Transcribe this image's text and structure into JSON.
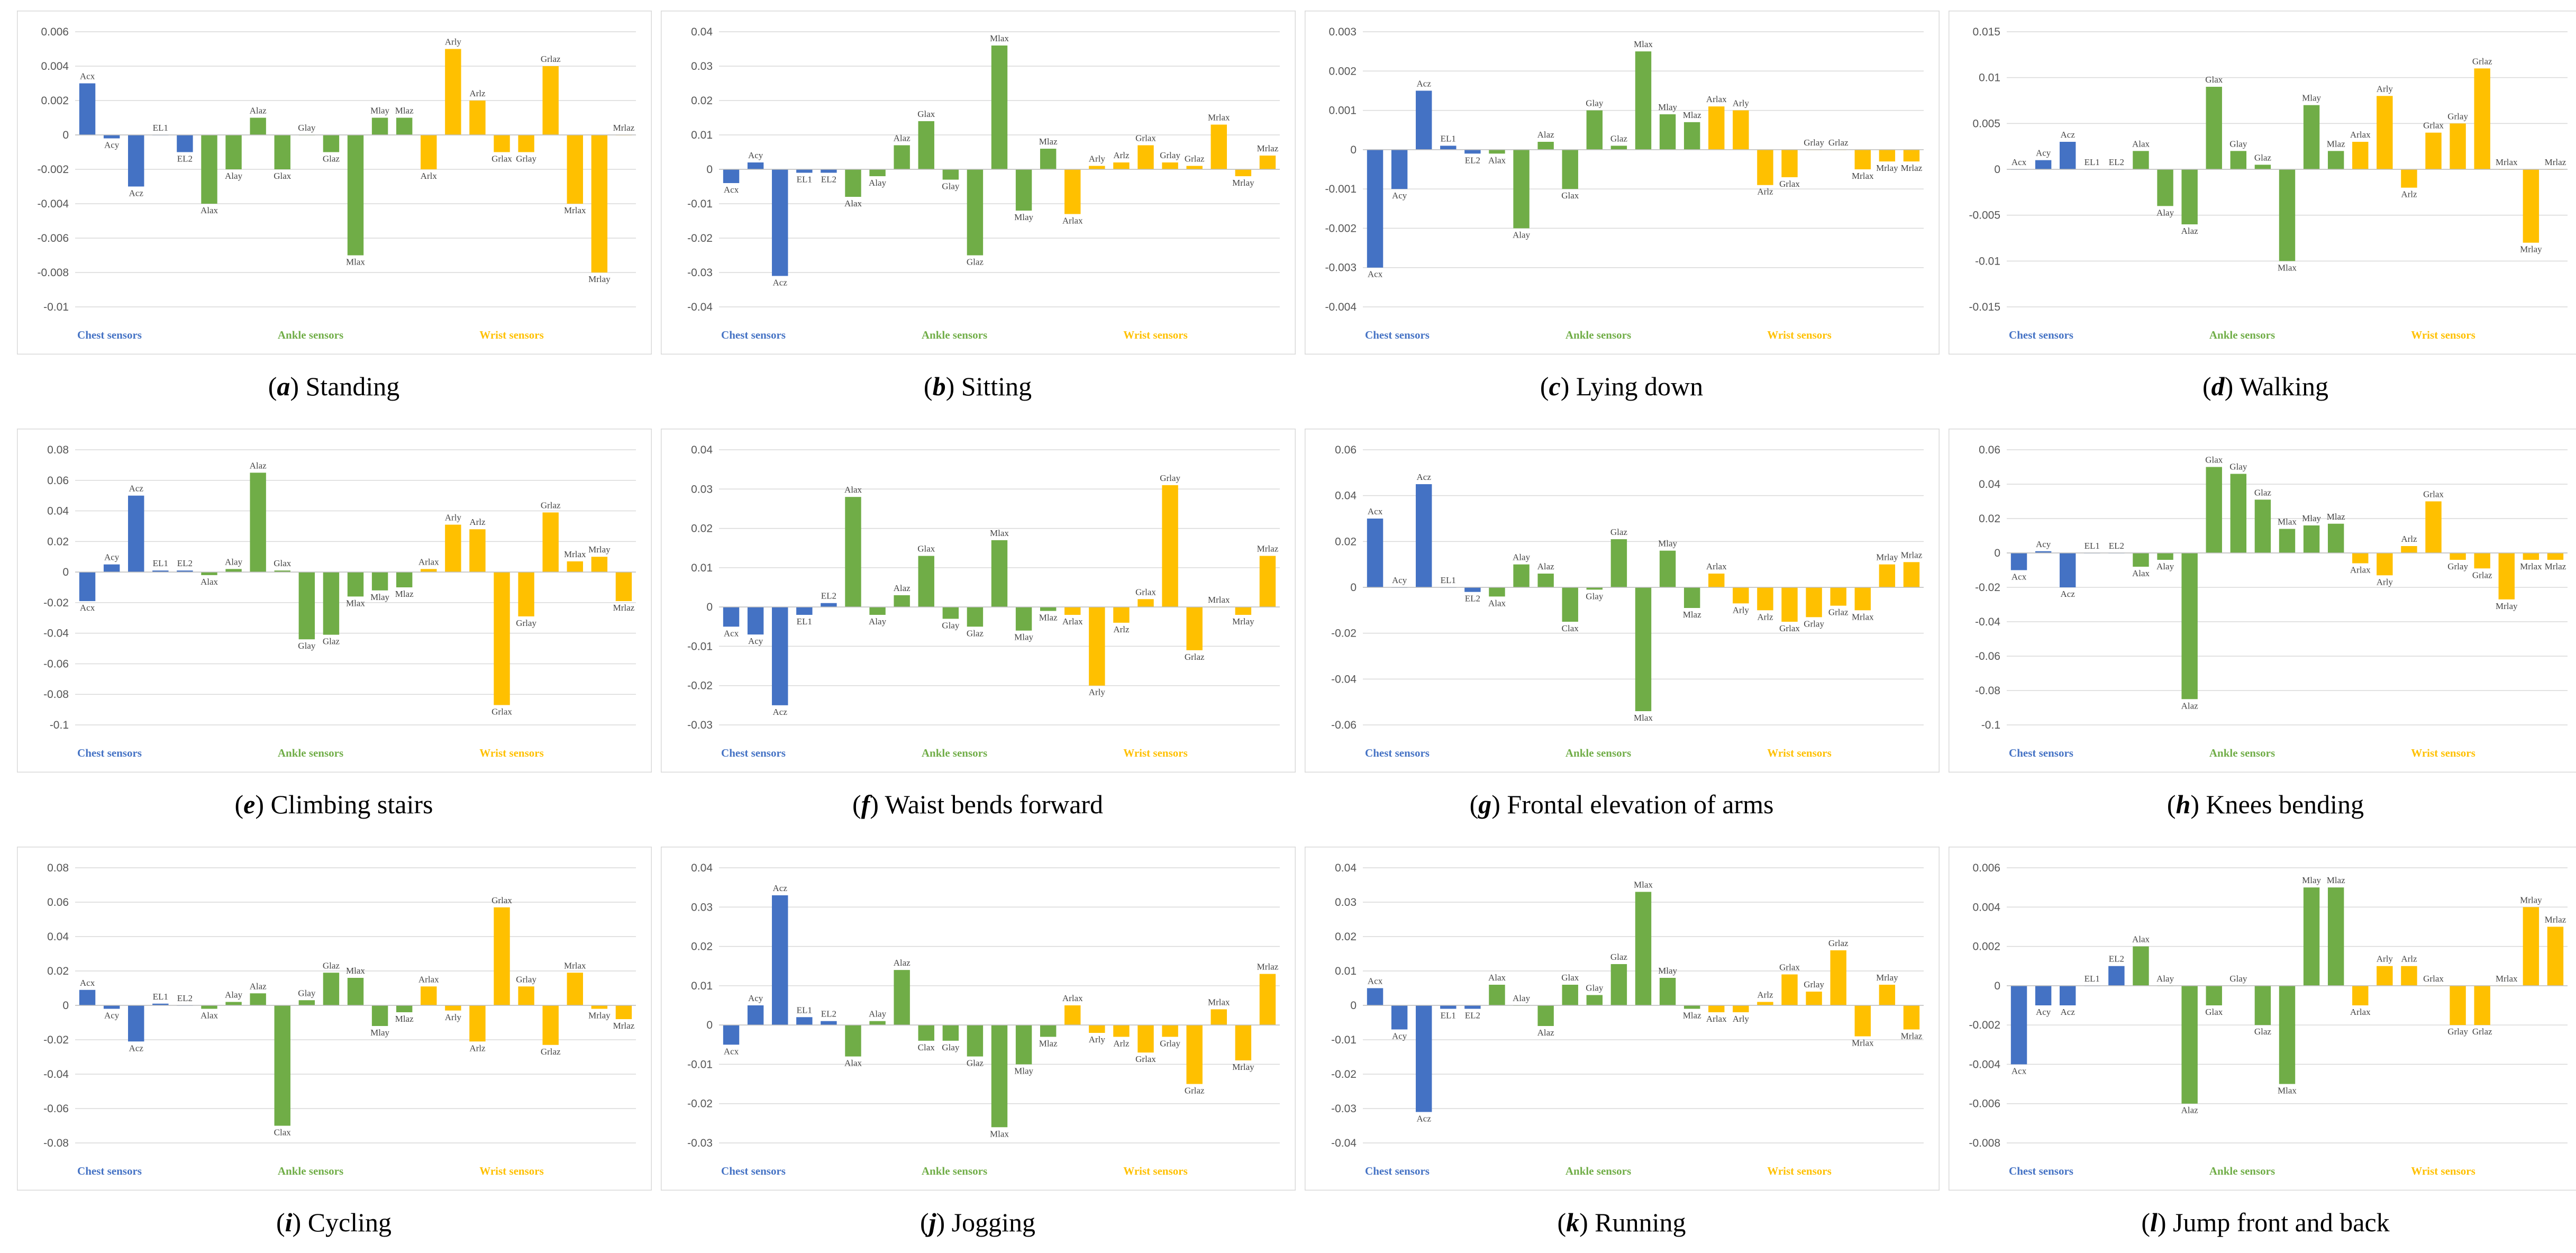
{
  "colors": {
    "chest": "#4472C4",
    "ankle": "#70AD47",
    "wrist": "#FFC000"
  },
  "group_labels": {
    "chest": "Chest sensors",
    "ankle": "Ankle sensors",
    "wrist": "Wrist sensors"
  },
  "chart_data": [
    {
      "type": "bar",
      "letter": "a",
      "title": "Standing",
      "ylim": [
        -0.01,
        0.006
      ],
      "yticks": [
        -0.01,
        -0.008,
        -0.006,
        -0.004,
        -0.002,
        0,
        0.002,
        0.004,
        0.006
      ],
      "categories": [
        "Acx",
        "Acy",
        "Acz",
        "EL1",
        "EL2",
        "Alax",
        "Alay",
        "Alaz",
        "Glax",
        "Glay",
        "Glaz",
        "Mlax",
        "Mlay",
        "Mlaz",
        "Arlx",
        "Arly",
        "Arlz",
        "Grlax",
        "Grlay",
        "Grlaz",
        "Mrlax",
        "Mrlay",
        "Mrlaz"
      ],
      "values": [
        0.003,
        -0.0002,
        -0.003,
        0,
        -0.001,
        -0.004,
        -0.002,
        0.001,
        -0.002,
        0,
        -0.001,
        -0.007,
        0.001,
        0.001,
        -0.002,
        0.005,
        0.002,
        -0.001,
        -0.001,
        0.004,
        -0.004,
        -0.008,
        0
      ]
    },
    {
      "type": "bar",
      "letter": "b",
      "title": "Sitting",
      "ylim": [
        -0.04,
        0.04
      ],
      "yticks": [
        -0.04,
        -0.03,
        -0.02,
        -0.01,
        0,
        0.01,
        0.02,
        0.03,
        0.04
      ],
      "categories": [
        "Acx",
        "Acy",
        "Acz",
        "EL1",
        "EL2",
        "Alax",
        "Alay",
        "Alaz",
        "Glax",
        "Glay",
        "Glaz",
        "Mlax",
        "Mlay",
        "Mlaz",
        "Arlax",
        "Arly",
        "Arlz",
        "Grlax",
        "Grlay",
        "Grlaz",
        "Mrlax",
        "Mrlay",
        "Mrlaz"
      ],
      "values": [
        -0.004,
        0.002,
        -0.031,
        -0.001,
        -0.001,
        -0.008,
        -0.002,
        0.007,
        0.014,
        -0.003,
        -0.025,
        0.036,
        -0.012,
        0.006,
        -0.013,
        0.001,
        0.002,
        0.007,
        0.002,
        0.001,
        0.013,
        -0.002,
        0.004
      ]
    },
    {
      "type": "bar",
      "letter": "c",
      "title": "Lying down",
      "ylim": [
        -0.004,
        0.003
      ],
      "yticks": [
        -0.004,
        -0.003,
        -0.002,
        -0.001,
        0,
        0.001,
        0.002,
        0.003
      ],
      "categories": [
        "Acx",
        "Acy",
        "Acz",
        "EL1",
        "EL2",
        "Alax",
        "Alay",
        "Alaz",
        "Glax",
        "Glay",
        "Glaz",
        "Mlax",
        "Mlay",
        "Mlaz",
        "Arlax",
        "Arly",
        "Arlz",
        "Grlax",
        "Grlay",
        "Grlaz",
        "Mrlax",
        "Mrlay",
        "Mrlaz"
      ],
      "values": [
        -0.003,
        -0.001,
        0.0015,
        0.0001,
        -0.0001,
        -0.0001,
        -0.002,
        0.0002,
        -0.001,
        0.001,
        0.0001,
        0.0025,
        0.0009,
        0.0007,
        0.0011,
        0.001,
        -0.0009,
        -0.0007,
        0,
        0,
        -0.0005,
        -0.0003,
        -0.0003
      ]
    },
    {
      "type": "bar",
      "letter": "d",
      "title": "Walking",
      "ylim": [
        -0.015,
        0.015
      ],
      "yticks": [
        -0.015,
        -0.01,
        -0.005,
        0,
        0.005,
        0.01,
        0.015
      ],
      "categories": [
        "Acx",
        "Acy",
        "Acz",
        "EL1",
        "EL2",
        "Alax",
        "Alay",
        "Alaz",
        "Glax",
        "Glay",
        "Glaz",
        "Mlax",
        "Mlay",
        "Mlaz",
        "Arlax",
        "Arly",
        "Arlz",
        "Grlax",
        "Grlay",
        "Grlaz",
        "Mrlax",
        "Mrlay",
        "Mrlaz"
      ],
      "values": [
        0,
        0.001,
        0.003,
        0,
        0,
        0.002,
        -0.004,
        -0.006,
        0.009,
        0.002,
        0.0005,
        -0.01,
        0.007,
        0.002,
        0.003,
        0.008,
        -0.002,
        0.004,
        0.005,
        0.011,
        0,
        -0.008,
        0
      ]
    },
    {
      "type": "bar",
      "letter": "e",
      "title": "Climbing stairs",
      "ylim": [
        -0.1,
        0.08
      ],
      "yticks": [
        -0.1,
        -0.08,
        -0.06,
        -0.04,
        -0.02,
        0,
        0.02,
        0.04,
        0.06,
        0.08
      ],
      "categories": [
        "Acx",
        "Acy",
        "Acz",
        "EL1",
        "EL2",
        "Alax",
        "Alay",
        "Alaz",
        "Glax",
        "Glay",
        "Glaz",
        "Mlax",
        "Mlay",
        "Mlaz",
        "Arlax",
        "Arly",
        "Arlz",
        "Grlax",
        "Grlay",
        "Grlaz",
        "Mrlax",
        "Mrlay",
        "Mrlaz"
      ],
      "values": [
        -0.019,
        0.005,
        0.05,
        0.001,
        0.001,
        -0.002,
        0.002,
        0.065,
        0.001,
        -0.044,
        -0.041,
        -0.016,
        -0.012,
        -0.01,
        0.002,
        0.031,
        0.028,
        -0.087,
        -0.029,
        0.039,
        0.007,
        0.01,
        -0.019
      ]
    },
    {
      "type": "bar",
      "letter": "f",
      "title": "Waist bends forward",
      "ylim": [
        -0.03,
        0.04
      ],
      "yticks": [
        -0.03,
        -0.02,
        -0.01,
        0,
        0.01,
        0.02,
        0.03,
        0.04
      ],
      "categories": [
        "Acx",
        "Acy",
        "Acz",
        "EL1",
        "EL2",
        "Alax",
        "Alay",
        "Alaz",
        "Glax",
        "Glay",
        "Glaz",
        "Mlax",
        "Mlay",
        "Mlaz",
        "Arlax",
        "Arly",
        "Arlz",
        "Grlax",
        "Grlay",
        "Grlaz",
        "Mrlax",
        "Mrlay",
        "Mrlaz"
      ],
      "values": [
        -0.005,
        -0.007,
        -0.025,
        -0.002,
        0.001,
        0.028,
        -0.002,
        0.003,
        0.013,
        -0.003,
        -0.005,
        0.017,
        -0.006,
        -0.001,
        -0.002,
        -0.02,
        -0.004,
        0.002,
        0.031,
        -0.011,
        0,
        -0.002,
        0.013
      ]
    },
    {
      "type": "bar",
      "letter": "g",
      "title": "Frontal elevation of arms",
      "ylim": [
        -0.06,
        0.06
      ],
      "yticks": [
        -0.06,
        -0.04,
        -0.02,
        0,
        0.02,
        0.04,
        0.06
      ],
      "categories": [
        "Acx",
        "Acy",
        "Acz",
        "EL1",
        "EL2",
        "Alax",
        "Alay",
        "Alaz",
        "Clax",
        "Glay",
        "Glaz",
        "Mlax",
        "Mlay",
        "Mlaz",
        "Arlax",
        "Arly",
        "Arlz",
        "Grlax",
        "Grlay",
        "Grlaz",
        "Mrlax",
        "Mrlay",
        "Mrlaz"
      ],
      "values": [
        0.03,
        0,
        0.045,
        0,
        -0.002,
        -0.004,
        0.01,
        0.006,
        -0.015,
        -0.001,
        0.021,
        -0.054,
        0.016,
        -0.009,
        0.006,
        -0.007,
        -0.01,
        -0.015,
        -0.013,
        -0.008,
        -0.01,
        0.01,
        0.011
      ]
    },
    {
      "type": "bar",
      "letter": "h",
      "title": "Knees bending",
      "ylim": [
        -0.1,
        0.06
      ],
      "yticks": [
        -0.1,
        -0.08,
        -0.06,
        -0.04,
        -0.02,
        0,
        0.02,
        0.04,
        0.06
      ],
      "categories": [
        "Acx",
        "Acy",
        "Acz",
        "EL1",
        "EL2",
        "Alax",
        "Alay",
        "Alaz",
        "Glax",
        "Glay",
        "Glaz",
        "Mlax",
        "Mlay",
        "Mlaz",
        "Arlax",
        "Arly",
        "Arlz",
        "Grlax",
        "Grlay",
        "Grlaz",
        "Mrlay",
        "Mrlax",
        "Mrlaz"
      ],
      "values": [
        -0.01,
        0.001,
        -0.02,
        0,
        0,
        -0.008,
        -0.004,
        -0.085,
        0.05,
        0.046,
        0.031,
        0.014,
        0.016,
        0.017,
        -0.006,
        -0.013,
        0.004,
        0.03,
        -0.004,
        -0.009,
        -0.027,
        -0.004,
        -0.004
      ]
    },
    {
      "type": "bar",
      "letter": "i",
      "title": "Cycling",
      "ylim": [
        -0.08,
        0.08
      ],
      "yticks": [
        -0.08,
        -0.06,
        -0.04,
        -0.02,
        0,
        0.02,
        0.04,
        0.06,
        0.08
      ],
      "categories": [
        "Acx",
        "Acy",
        "Acz",
        "EL1",
        "EL2",
        "Alax",
        "Alay",
        "Alaz",
        "Clax",
        "Glay",
        "Glaz",
        "Mlax",
        "Mlay",
        "Mlaz",
        "Arlax",
        "Arly",
        "Arlz",
        "Grlax",
        "Grlay",
        "Grlaz",
        "Mrlax",
        "Mrlay",
        "Mrlaz"
      ],
      "values": [
        0.009,
        -0.002,
        -0.021,
        0.001,
        0,
        -0.002,
        0.002,
        0.007,
        -0.07,
        0.003,
        0.019,
        0.016,
        -0.012,
        -0.004,
        0.011,
        -0.003,
        -0.021,
        0.057,
        0.011,
        -0.023,
        0.019,
        -0.002,
        -0.008
      ]
    },
    {
      "type": "bar",
      "letter": "j",
      "title": "Jogging",
      "ylim": [
        -0.03,
        0.04
      ],
      "yticks": [
        -0.03,
        -0.02,
        -0.01,
        0,
        0.01,
        0.02,
        0.03,
        0.04
      ],
      "categories": [
        "Acx",
        "Acy",
        "Acz",
        "EL1",
        "EL2",
        "Alax",
        "Alay",
        "Alaz",
        "Clax",
        "Glay",
        "Glaz",
        "Mlax",
        "Mlay",
        "Mlaz",
        "Arlax",
        "Arly",
        "Arlz",
        "Grlax",
        "Grlay",
        "Grlaz",
        "Mrlax",
        "Mrlay",
        "Mrlaz"
      ],
      "values": [
        -0.005,
        0.005,
        0.033,
        0.002,
        0.001,
        -0.008,
        0.001,
        0.014,
        -0.004,
        -0.004,
        -0.008,
        -0.026,
        -0.01,
        -0.003,
        0.005,
        -0.002,
        -0.003,
        -0.007,
        -0.003,
        -0.015,
        0.004,
        -0.009,
        0.013
      ]
    },
    {
      "type": "bar",
      "letter": "k",
      "title": "Running",
      "ylim": [
        -0.04,
        0.04
      ],
      "yticks": [
        -0.04,
        -0.03,
        -0.02,
        -0.01,
        0,
        0.01,
        0.02,
        0.03,
        0.04
      ],
      "categories": [
        "Acx",
        "Acy",
        "Acz",
        "EL1",
        "EL2",
        "Alax",
        "Alay",
        "Alaz",
        "Glax",
        "Glay",
        "Glaz",
        "Mlax",
        "Mlay",
        "Mlaz",
        "Arlax",
        "Arly",
        "Arlz",
        "Grlax",
        "Grlay",
        "Grlaz",
        "Mrlax",
        "Mrlay",
        "Mrlaz"
      ],
      "values": [
        0.005,
        -0.007,
        -0.031,
        -0.001,
        -0.001,
        0.006,
        0,
        -0.006,
        0.006,
        0.003,
        0.012,
        0.033,
        0.008,
        -0.001,
        -0.002,
        -0.002,
        0.001,
        0.009,
        0.004,
        0.016,
        -0.009,
        0.006,
        -0.007
      ]
    },
    {
      "type": "bar",
      "letter": "l",
      "title": "Jump front and back",
      "ylim": [
        -0.008,
        0.006
      ],
      "yticks": [
        -0.008,
        -0.006,
        -0.004,
        -0.002,
        0,
        0.002,
        0.004,
        0.006
      ],
      "categories": [
        "Acx",
        "Acy",
        "Acz",
        "EL1",
        "EL2",
        "Alax",
        "Alay",
        "Alaz",
        "Glax",
        "Glay",
        "Glaz",
        "Mlax",
        "Mlay",
        "Mlaz",
        "Arlax",
        "Arly",
        "Arlz",
        "Grlax",
        "Grlay",
        "Grlaz",
        "Mrlax",
        "Mrlay",
        "Mrlaz"
      ],
      "values": [
        -0.004,
        -0.001,
        -0.001,
        0,
        0.001,
        0.002,
        0,
        -0.006,
        -0.001,
        0,
        -0.002,
        -0.005,
        0.005,
        0.005,
        -0.001,
        0.001,
        0.001,
        0,
        -0.002,
        -0.002,
        0,
        0.004,
        0.003
      ]
    }
  ]
}
